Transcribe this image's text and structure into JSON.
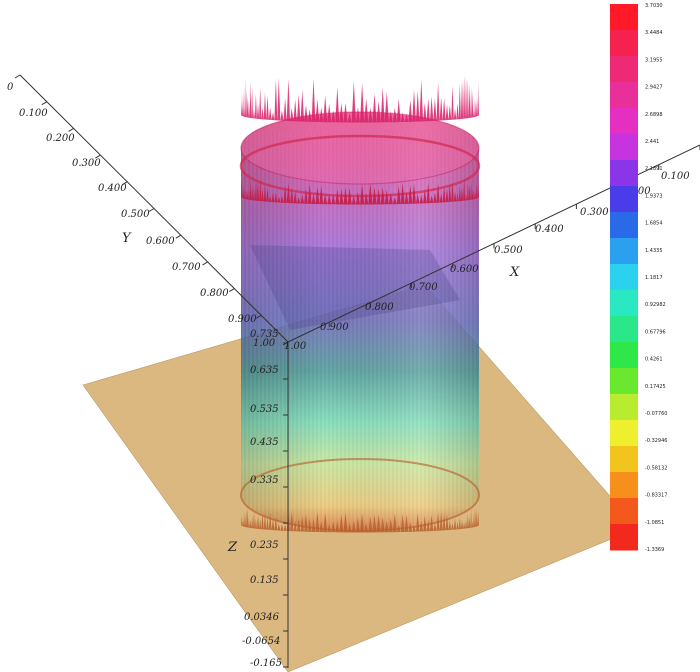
{
  "chart_data": {
    "type": "surface3d",
    "title": "",
    "axes": {
      "x": {
        "label": "X",
        "ticks": [
          "0.100",
          "0.200",
          "0.300",
          "0.400",
          "0.500",
          "0.600",
          "0.700",
          "0.800",
          "0.900",
          "1.00"
        ]
      },
      "y": {
        "label": "Y",
        "ticks": [
          "0",
          "0.100",
          "0.200",
          "0.300",
          "0.400",
          "0.500",
          "0.600",
          "0.700",
          "0.800",
          "0.900",
          "1.00"
        ]
      },
      "z": {
        "label": "Z",
        "ticks": [
          "0.735",
          "0.635",
          "0.535",
          "0.435",
          "0.335",
          "0.235",
          "0.135",
          "0.0346",
          "-0.0654",
          "-0.165"
        ]
      }
    },
    "colorbar": {
      "labels": [
        "3.7030",
        "3.4484",
        "3.1955",
        "2.9427",
        "2.6898",
        "2.441",
        "2.1891",
        "1.9373",
        "1.6854",
        "1.4335",
        "1.1817",
        "0.92982",
        "0.67796",
        "0.4261",
        "0.17425",
        "-0.07760",
        "-0.32946",
        "-0.58132",
        "-0.83317",
        "-1.0851",
        "-1.3369"
      ],
      "colors": [
        "#ff1a2a",
        "#f5224f",
        "#ee2a76",
        "#e82f9a",
        "#e42fc2",
        "#c634e0",
        "#8a36e8",
        "#4a3ce8",
        "#2a6ae8",
        "#2aa0ee",
        "#2ad2ee",
        "#2ae8c2",
        "#2ae88a",
        "#2ee84a",
        "#6ae82e",
        "#b8ec2e",
        "#eef02e",
        "#f4c41e",
        "#f6901a",
        "#f4581a",
        "#f22a1e"
      ]
    },
    "surface": {
      "base_color": "#dcb881",
      "shape": "cylinder"
    }
  }
}
